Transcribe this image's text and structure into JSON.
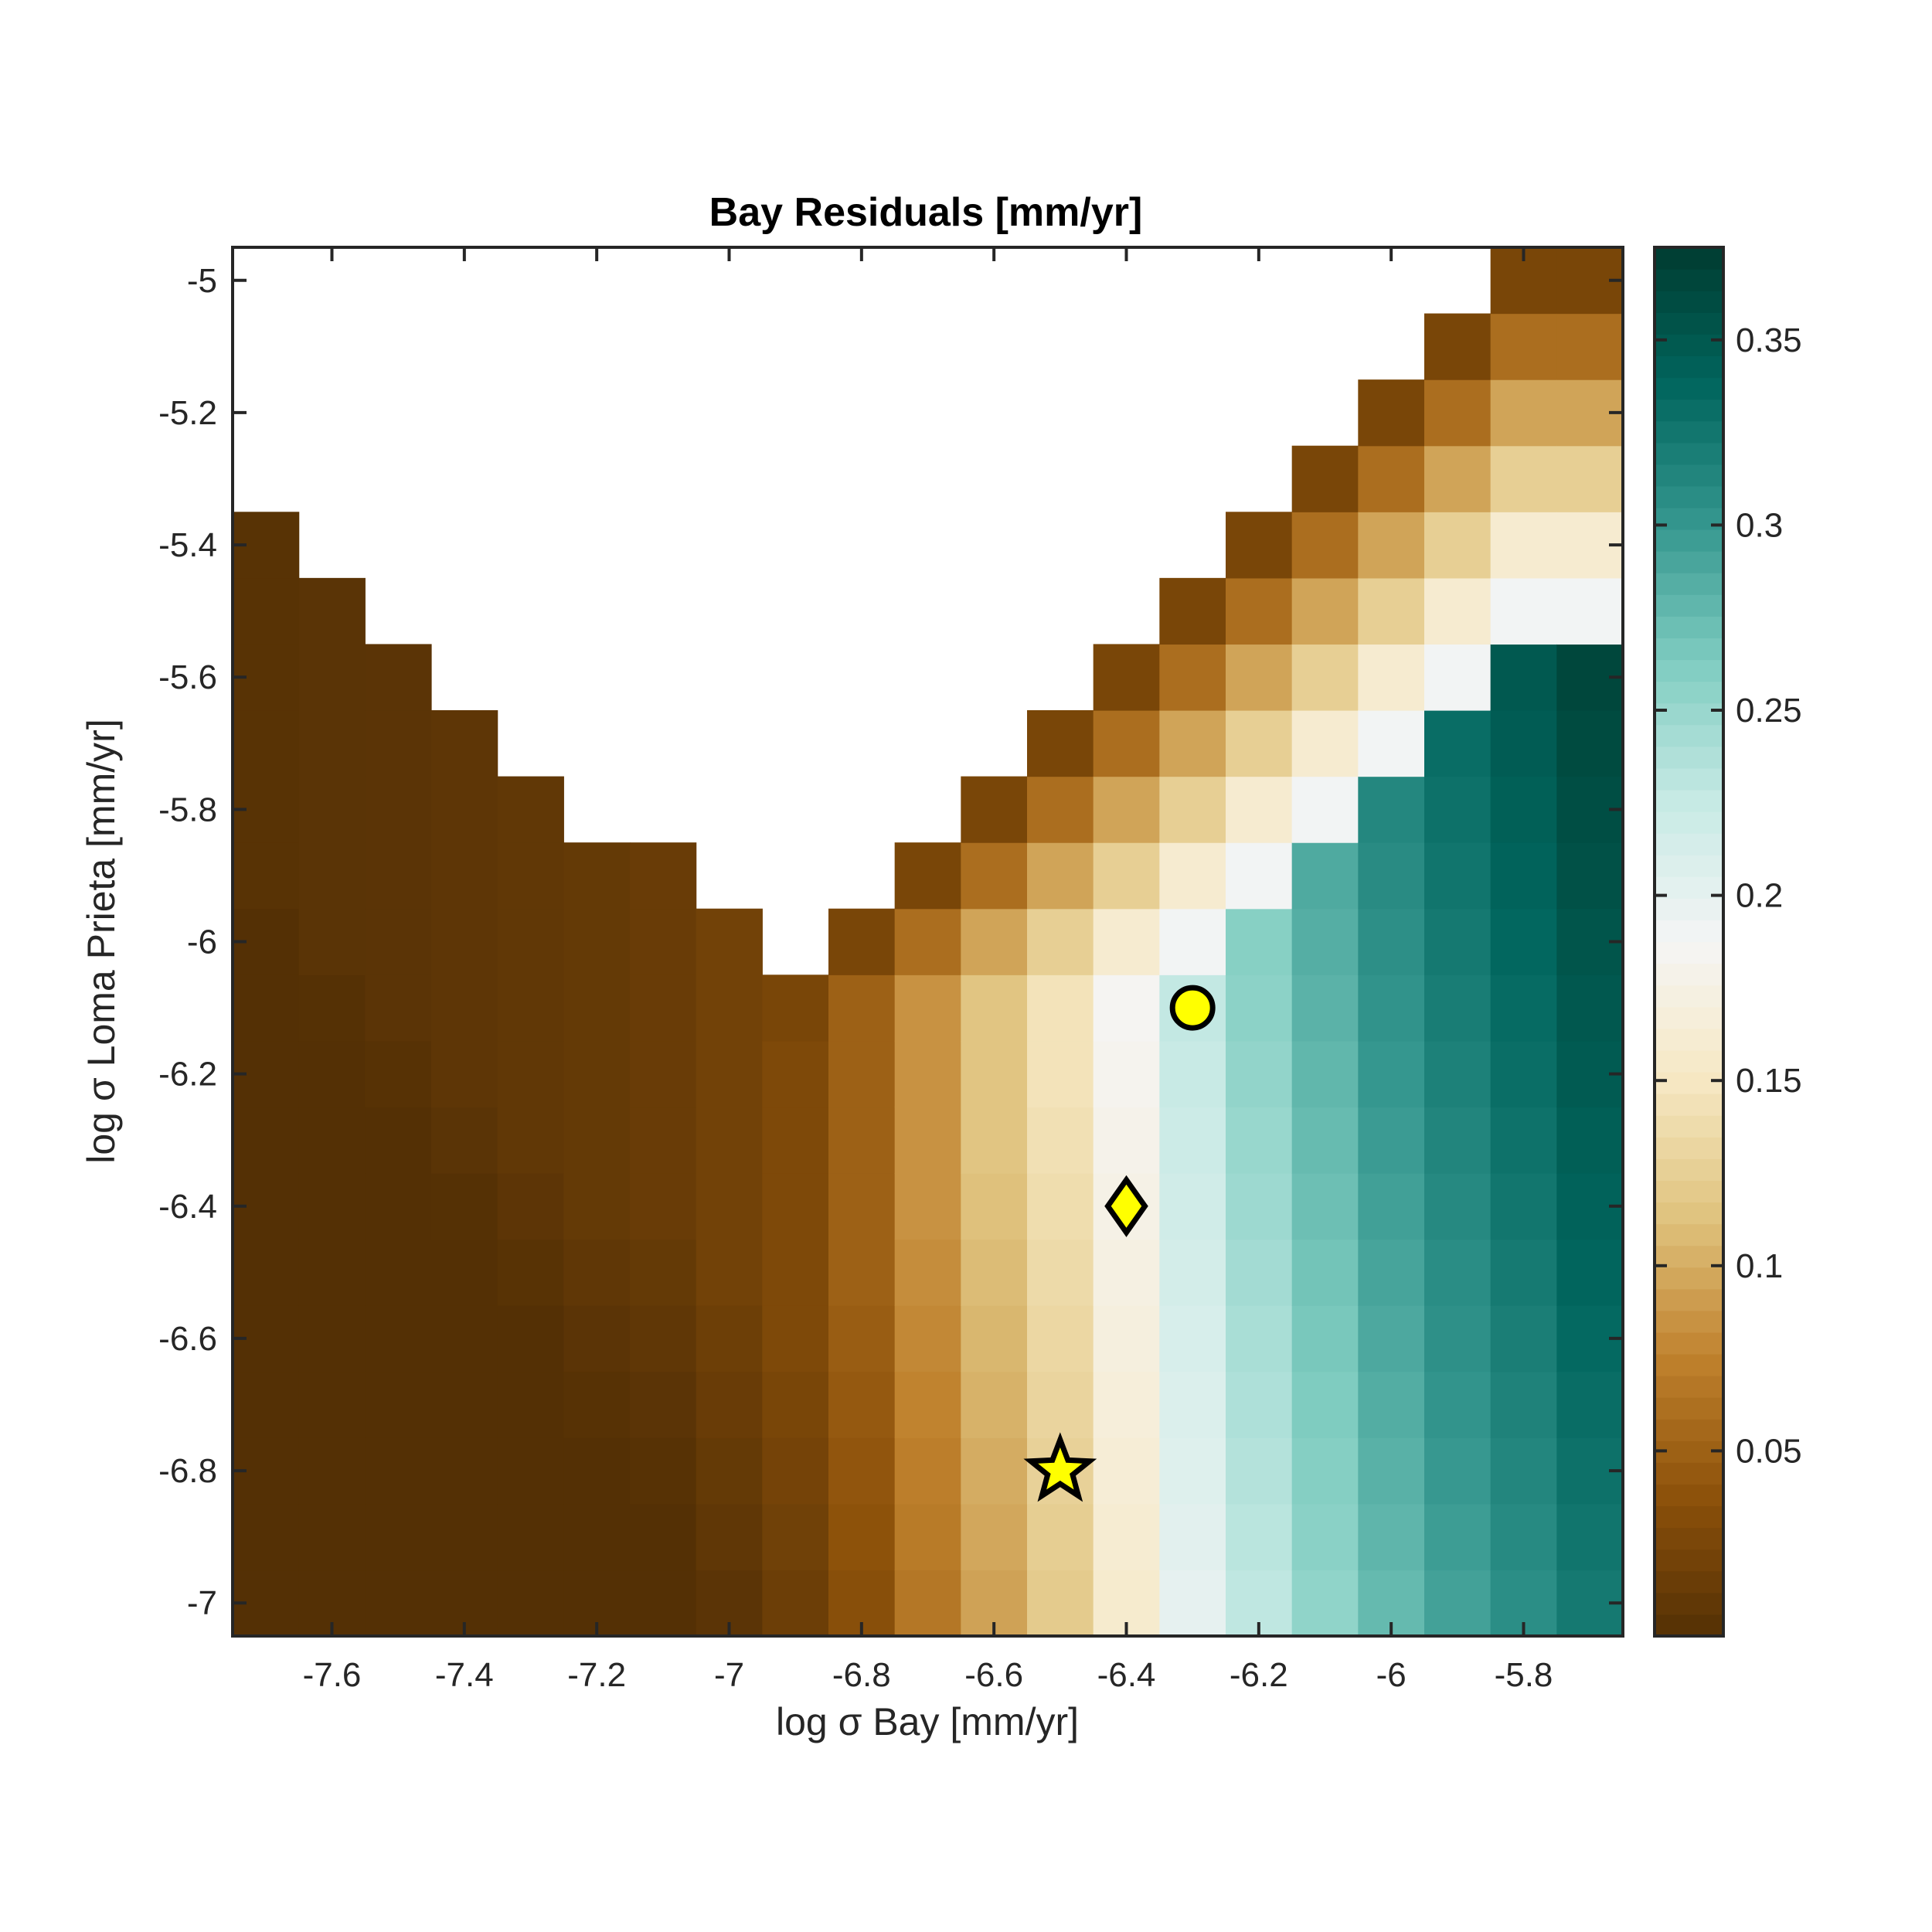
{
  "chart_data": {
    "type": "heatmap",
    "title": "Bay Residuals [mm/yr]",
    "xlabel": "log σ Bay [mm/yr]",
    "ylabel": "log σ Loma Prieta [mm/yr]",
    "x_range": [
      -7.75,
      -5.65
    ],
    "y_range": [
      -7.05,
      -4.95
    ],
    "x_ticks": [
      -7.6,
      -7.4,
      -7.2,
      -7.0,
      -6.8,
      -6.6,
      -6.4,
      -6.2,
      -6.0,
      -5.8
    ],
    "x_tick_labels": [
      "-7.6",
      "-7.4",
      "-7.2",
      "-7",
      "-6.8",
      "-6.6",
      "-6.4",
      "-6.2",
      "-6",
      "-5.8"
    ],
    "y_ticks": [
      -5.0,
      -5.2,
      -5.4,
      -5.6,
      -5.8,
      -6.0,
      -6.2,
      -6.4,
      -6.6,
      -6.8,
      -7.0
    ],
    "y_tick_labels": [
      "-5",
      "-5.2",
      "-5.4",
      "-5.6",
      "-5.8",
      "-6",
      "-6.2",
      "-6.4",
      "-6.6",
      "-6.8",
      "-7"
    ],
    "x_centers": [
      -7.7,
      -7.6,
      -7.5,
      -7.4,
      -7.3,
      -7.2,
      -7.1,
      -7.0,
      -6.9,
      -6.8,
      -6.7,
      -6.6,
      -6.5,
      -6.4,
      -6.3,
      -6.2,
      -6.1,
      -6.0,
      -5.9,
      -5.8,
      -5.7
    ],
    "y_centers": [
      -7.0,
      -6.9,
      -6.8,
      -6.7,
      -6.6,
      -6.5,
      -6.4,
      -6.3,
      -6.2,
      -6.1,
      -6.0,
      -5.9,
      -5.8,
      -5.7,
      -5.6,
      -5.5,
      -5.4,
      -5.3,
      -5.2,
      -5.1,
      -5.0
    ],
    "column_values": [
      0.003,
      0.004,
      0.005,
      0.007,
      0.009,
      0.011,
      0.014,
      0.02,
      0.028,
      0.05,
      0.085,
      0.115,
      0.145,
      0.185,
      0.23,
      0.262,
      0.29,
      0.315,
      0.335,
      0.352,
      0.368
    ],
    "column_min_y": [
      -7.0,
      -7.0,
      -7.0,
      -7.0,
      -7.0,
      -7.0,
      -7.0,
      -7.0,
      -7.0,
      -7.0,
      -7.0,
      -7.0,
      -7.0,
      -7.0,
      -7.0,
      -7.0,
      -7.0,
      -7.0,
      -7.0,
      -7.0,
      -7.0
    ],
    "column_max_y": [
      -5.4,
      -5.5,
      -5.6,
      -5.7,
      -5.8,
      -5.9,
      -5.9,
      -6.0,
      -6.1,
      -6.0,
      -5.9,
      -5.8,
      -5.7,
      -5.6,
      -5.5,
      -5.4,
      -5.3,
      -5.2,
      -5.1,
      -5.0,
      -5.0
    ],
    "top_edge_values": [
      0.025,
      0.06,
      0.095,
      0.125,
      0.16,
      0.19
    ],
    "colorbar": {
      "range": [
        0.0,
        0.375
      ],
      "ticks": [
        0.05,
        0.1,
        0.15,
        0.2,
        0.25,
        0.3,
        0.35
      ],
      "tick_labels": [
        "0.05",
        "0.1",
        "0.15",
        "0.2",
        "0.25",
        "0.3",
        "0.35"
      ],
      "colors": [
        "#543005",
        "#8c510a",
        "#bf812d",
        "#dfc27d",
        "#f6e8c3",
        "#f5f5f5",
        "#c7eae5",
        "#80cdc1",
        "#35978f",
        "#01665e",
        "#003c30"
      ]
    },
    "markers": [
      {
        "shape": "circle",
        "x": -6.3,
        "y": -6.1,
        "color": "#ffff00"
      },
      {
        "shape": "diamond",
        "x": -6.4,
        "y": -6.4,
        "color": "#ffff00"
      },
      {
        "shape": "star",
        "x": -6.5,
        "y": -6.8,
        "color": "#ffff00"
      }
    ]
  }
}
